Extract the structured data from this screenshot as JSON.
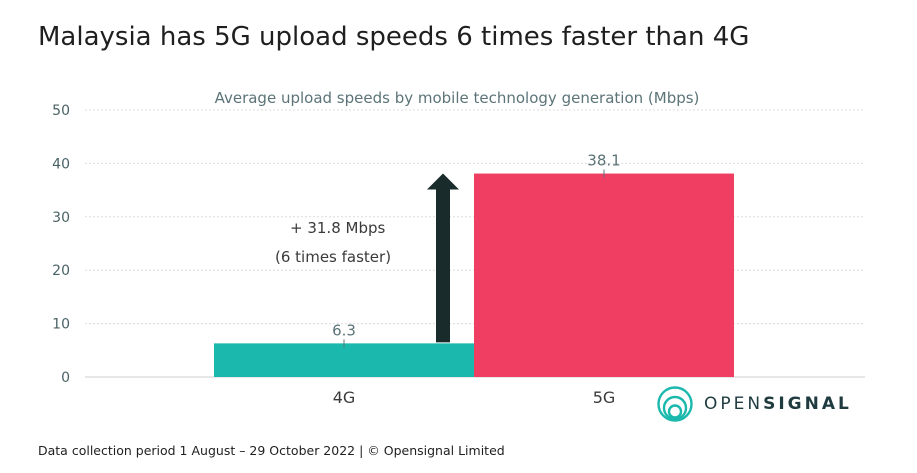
{
  "header": {
    "title": "Malaysia has 5G upload speeds 6 times faster than 4G"
  },
  "chart_data": {
    "type": "bar",
    "subtitle": "Average upload speeds by mobile technology generation (Mbps)",
    "categories": [
      "4G",
      "5G"
    ],
    "values": [
      6.3,
      38.1
    ],
    "data_labels": [
      "6.3",
      "38.1"
    ],
    "colors": [
      "#1bb8ad",
      "#ef3e62"
    ],
    "ylim": [
      0,
      50
    ],
    "yticks": [
      0,
      10,
      20,
      30,
      40,
      50
    ],
    "grid": true,
    "annotation": {
      "line1": "+ 31.8 Mbps",
      "line2": "(6 times faster)",
      "arrow_from": 6.3,
      "arrow_to": 38.1,
      "arrow_color": "#1a2b2b"
    }
  },
  "footer": {
    "text": "Data collection period 1 August – 29 October 2022  |  © Opensignal Limited"
  },
  "logo": {
    "text_light": "OPEN",
    "text_bold": "SIGNAL",
    "icon": "opensignal-rings-icon",
    "color": "#1bb8ad"
  }
}
